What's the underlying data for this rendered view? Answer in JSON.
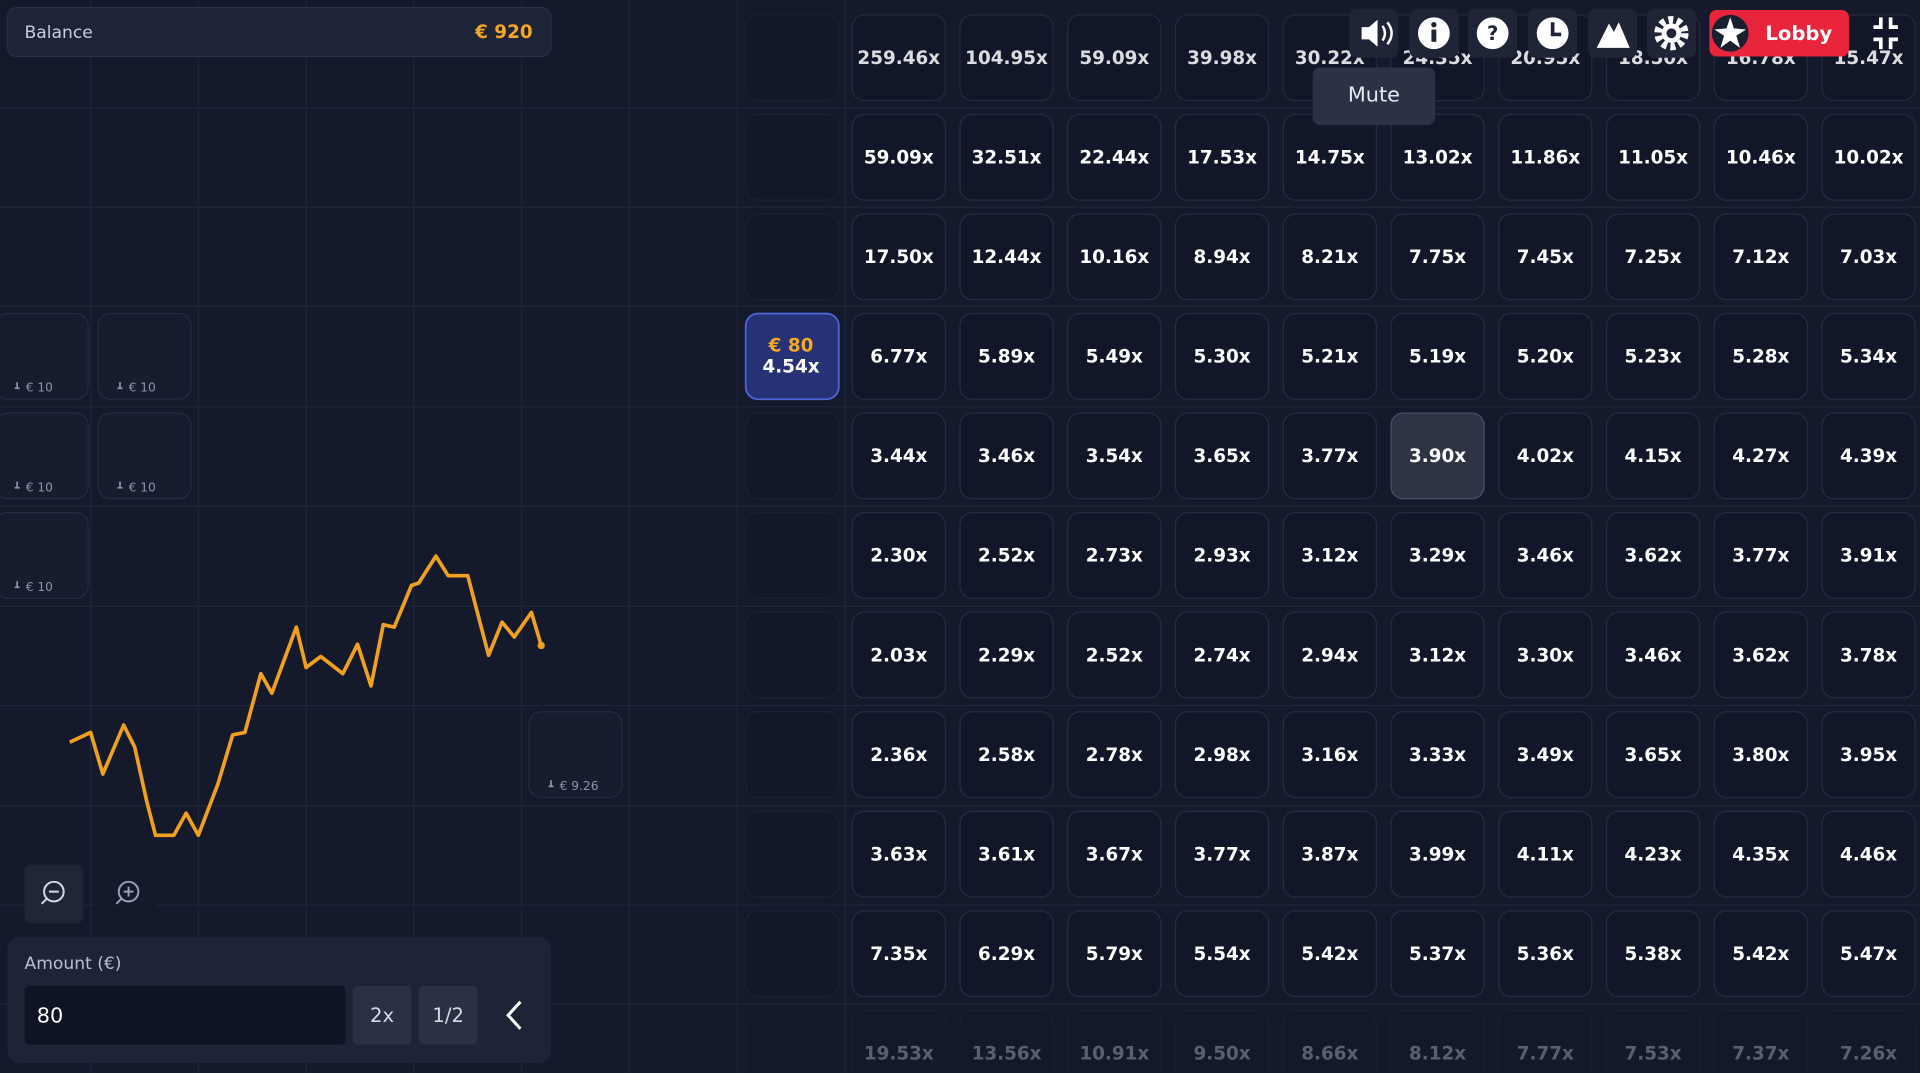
{
  "balance": {
    "label": "Balance",
    "value": "€ 920"
  },
  "toolbar": {
    "tooltip": "Mute",
    "lobby": "Lobby"
  },
  "active_bet": {
    "amount": "€ 80",
    "multiplier": "4.54x"
  },
  "grid": {
    "rows": [
      [
        "259.46x",
        "104.95x",
        "59.09x",
        "39.98x",
        "30.22x",
        "24.35x",
        "20.95x",
        "18.50x",
        "16.78x",
        "15.47x"
      ],
      [
        "59.09x",
        "32.51x",
        "22.44x",
        "17.53x",
        "14.75x",
        "13.02x",
        "11.86x",
        "11.05x",
        "10.46x",
        "10.02x"
      ],
      [
        "17.50x",
        "12.44x",
        "10.16x",
        "8.94x",
        "8.21x",
        "7.75x",
        "7.45x",
        "7.25x",
        "7.12x",
        "7.03x"
      ],
      [
        "6.77x",
        "5.89x",
        "5.49x",
        "5.30x",
        "5.21x",
        "5.19x",
        "5.20x",
        "5.23x",
        "5.28x",
        "5.34x"
      ],
      [
        "3.44x",
        "3.46x",
        "3.54x",
        "3.65x",
        "3.77x",
        "3.90x",
        "4.02x",
        "4.15x",
        "4.27x",
        "4.39x"
      ],
      [
        "2.30x",
        "2.52x",
        "2.73x",
        "2.93x",
        "3.12x",
        "3.29x",
        "3.46x",
        "3.62x",
        "3.77x",
        "3.91x"
      ],
      [
        "2.03x",
        "2.29x",
        "2.52x",
        "2.74x",
        "2.94x",
        "3.12x",
        "3.30x",
        "3.46x",
        "3.62x",
        "3.78x"
      ],
      [
        "2.36x",
        "2.58x",
        "2.78x",
        "2.98x",
        "3.16x",
        "3.33x",
        "3.49x",
        "3.65x",
        "3.80x",
        "3.95x"
      ],
      [
        "3.63x",
        "3.61x",
        "3.67x",
        "3.77x",
        "3.87x",
        "3.99x",
        "4.11x",
        "4.23x",
        "4.35x",
        "4.46x"
      ],
      [
        "7.35x",
        "6.29x",
        "5.79x",
        "5.54x",
        "5.42x",
        "5.37x",
        "5.36x",
        "5.38x",
        "5.42x",
        "5.47x"
      ],
      [
        "19.53x",
        "13.56x",
        "10.91x",
        "9.50x",
        "8.66x",
        "8.12x",
        "7.77x",
        "7.53x",
        "7.37x",
        "7.26x"
      ]
    ]
  },
  "chips": [
    "€ 10",
    "€ 10",
    "€ 10",
    "€ 10",
    "€ 10",
    "€ 9.26"
  ],
  "amount": {
    "label": "Amount (€)",
    "value": "80",
    "double": "2x",
    "half": "1/2"
  }
}
